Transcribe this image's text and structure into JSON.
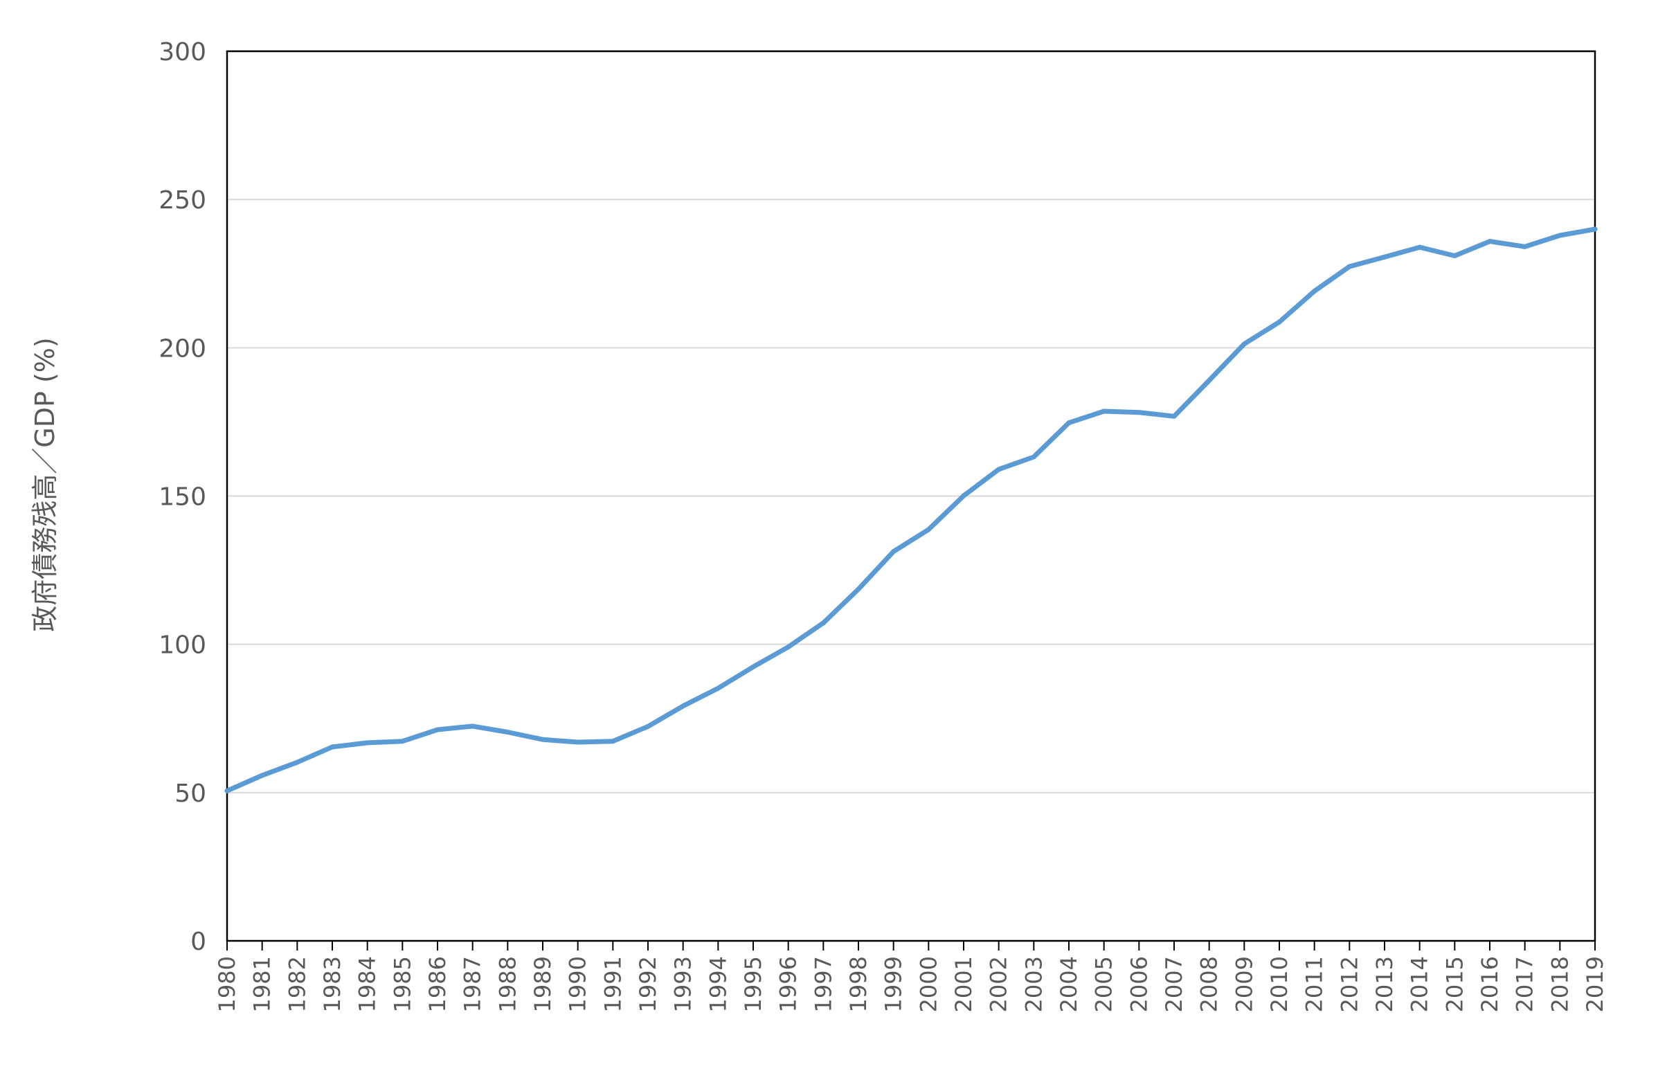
{
  "chart_data": {
    "type": "line",
    "title": "",
    "xlabel": "",
    "ylabel": "政府債務残高／GDP (%)",
    "ylim": [
      0,
      300
    ],
    "yticks": [
      "0",
      "50",
      "100",
      "150",
      "200",
      "250",
      "300"
    ],
    "grid": true,
    "legend": "none",
    "line_color": "#5B9BD5",
    "categories": [
      "1980",
      "1981",
      "1982",
      "1983",
      "1984",
      "1985",
      "1986",
      "1987",
      "1988",
      "1989",
      "1990",
      "1991",
      "1992",
      "1993",
      "1994",
      "1995",
      "1996",
      "1997",
      "1998",
      "1999",
      "2000",
      "2001",
      "2002",
      "2003",
      "2004",
      "2005",
      "2006",
      "2007",
      "2008",
      "2009",
      "2010",
      "2011",
      "2012",
      "2013",
      "2014",
      "2015",
      "2016",
      "2017",
      "2018",
      "2019"
    ],
    "series": [
      {
        "values": [
          50.6,
          55.8,
          60.2,
          65.4,
          66.8,
          67.3,
          71.2,
          72.4,
          70.4,
          67.9,
          67.0,
          67.3,
          72.3,
          79.2,
          85.2,
          92.4,
          99.1,
          107.2,
          118.6,
          131.3,
          138.7,
          150.1,
          159.0,
          163.2,
          174.7,
          178.6,
          178.2,
          176.9,
          189.0,
          201.3,
          208.7,
          219.1,
          227.4,
          230.6,
          233.9,
          231.0,
          235.9,
          234.1,
          237.9,
          240.0
        ]
      }
    ]
  }
}
